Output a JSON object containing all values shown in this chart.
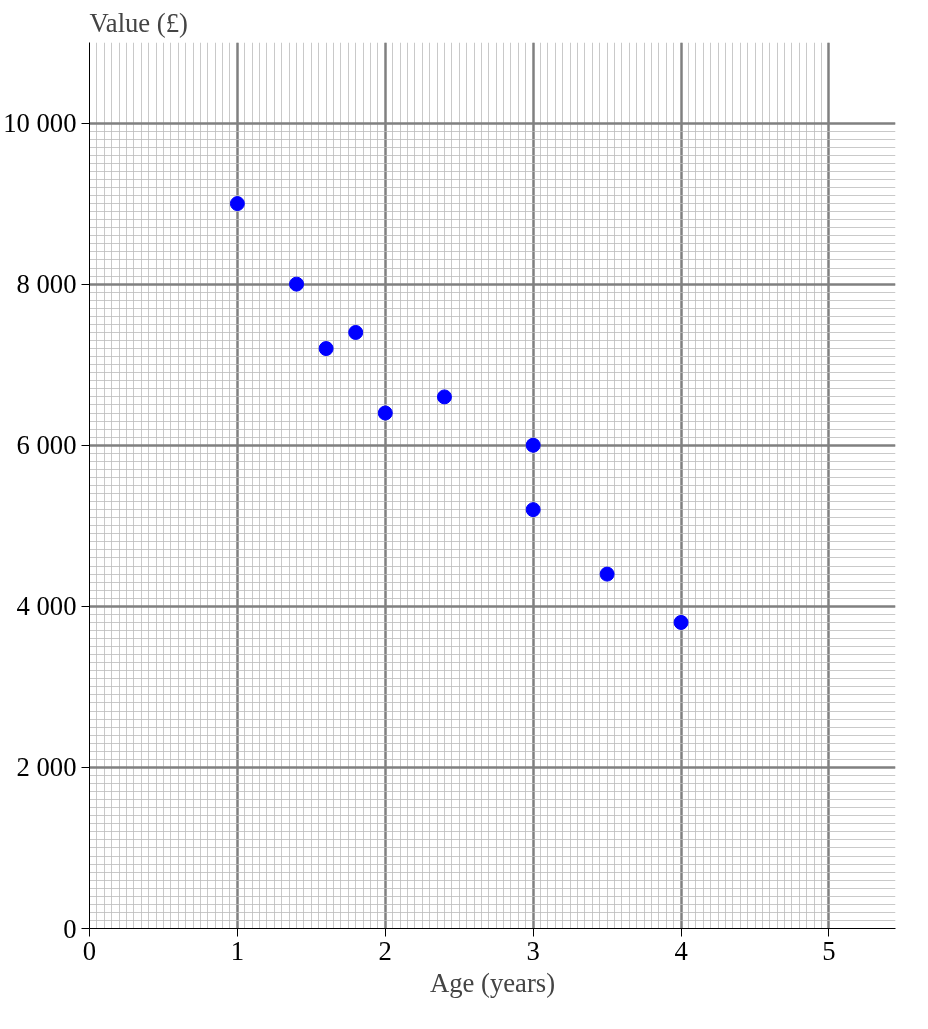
{
  "chart_data": {
    "type": "scatter",
    "xlabel": "Age (years)",
    "ylabel": "Value (£)",
    "x": [
      1,
      1.4,
      1.6,
      1.8,
      2,
      2.4,
      3,
      3,
      3.5,
      4
    ],
    "series": [
      {
        "color": "#0000ff",
        "values": [
          9000,
          8000,
          7200,
          7400,
          6400,
          6600,
          6000,
          5200,
          4400,
          3800
        ]
      }
    ],
    "xlim": [
      0,
      5.45
    ],
    "ylim": [
      0,
      11000
    ],
    "xticks": [
      0,
      1,
      2,
      3,
      4,
      5
    ],
    "yticks": [
      0,
      {
        "value": 2000,
        "label": "2 000"
      },
      {
        "value": 4000,
        "label": "4 000"
      },
      {
        "value": 6000,
        "label": "6 000"
      },
      {
        "value": 8000,
        "label": "8 000"
      },
      {
        "value": 10000,
        "label": "10 000"
      }
    ],
    "grid": true,
    "marker": "circle"
  }
}
